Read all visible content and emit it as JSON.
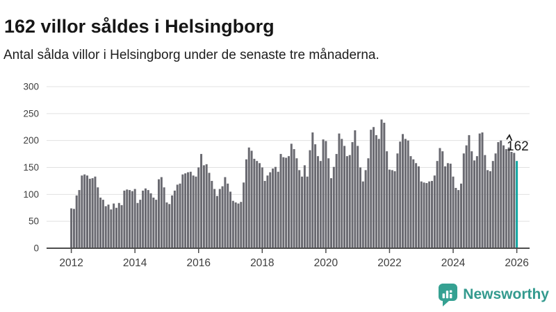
{
  "header": {
    "title": "162 villor såldes i Helsingborg",
    "subtitle": "Antal sålda villor i Helsingborg under de senaste tre månaderna."
  },
  "chart_data": {
    "type": "bar",
    "title": "162 villor såldes i Helsingborg",
    "subtitle": "Antal sålda villor i Helsingborg under de senaste tre månaderna.",
    "xlabel": "",
    "ylabel": "",
    "x_unit": "month",
    "x_start": "2012-01",
    "x_end": "2026-01",
    "ylim": [
      0,
      300
    ],
    "y_ticks": [
      0,
      50,
      100,
      150,
      200,
      250,
      300
    ],
    "x_tick_years": [
      2012,
      2014,
      2016,
      2018,
      2020,
      2022,
      2024,
      2026
    ],
    "grid": "horizontal",
    "legend": "none",
    "bar_color": "#696970",
    "values": [
      74,
      73,
      98,
      108,
      135,
      137,
      135,
      129,
      130,
      133,
      113,
      94,
      90,
      78,
      81,
      72,
      83,
      75,
      84,
      80,
      107,
      109,
      108,
      106,
      110,
      84,
      90,
      107,
      111,
      108,
      102,
      94,
      90,
      128,
      132,
      113,
      85,
      82,
      98,
      107,
      118,
      120,
      137,
      139,
      141,
      142,
      135,
      133,
      150,
      175,
      154,
      156,
      140,
      125,
      110,
      97,
      110,
      115,
      132,
      120,
      105,
      88,
      85,
      83,
      86,
      122,
      165,
      187,
      181,
      166,
      162,
      158,
      150,
      125,
      135,
      141,
      148,
      151,
      142,
      175,
      169,
      168,
      171,
      194,
      184,
      167,
      145,
      133,
      154,
      133,
      182,
      215,
      193,
      171,
      162,
      202,
      199,
      167,
      130,
      151,
      175,
      213,
      203,
      190,
      171,
      173,
      197,
      219,
      190,
      150,
      124,
      145,
      167,
      220,
      225,
      210,
      203,
      239,
      233,
      180,
      146,
      145,
      143,
      176,
      198,
      212,
      203,
      200,
      171,
      165,
      158,
      152,
      124,
      122,
      121,
      124,
      125,
      135,
      162,
      186,
      180,
      152,
      158,
      157,
      133,
      112,
      108,
      120,
      176,
      191,
      210,
      180,
      163,
      171,
      213,
      215,
      173,
      145,
      143,
      162,
      176,
      197,
      200,
      191,
      184,
      187,
      179,
      177,
      162
    ],
    "highlight": {
      "index": 168,
      "value": 162,
      "label": "162",
      "color": "#12a6a2"
    },
    "colors": {
      "grid_line": "#e1e1e1",
      "axis_line": "#4c4c4c",
      "tick_text": "#3d3d3d",
      "annotation_text": "#1a1a1a"
    }
  },
  "footer": {
    "brand": "Newsworthy",
    "logo_icon": "newsworthy-logo-icon",
    "brand_color": "#339a8e"
  }
}
